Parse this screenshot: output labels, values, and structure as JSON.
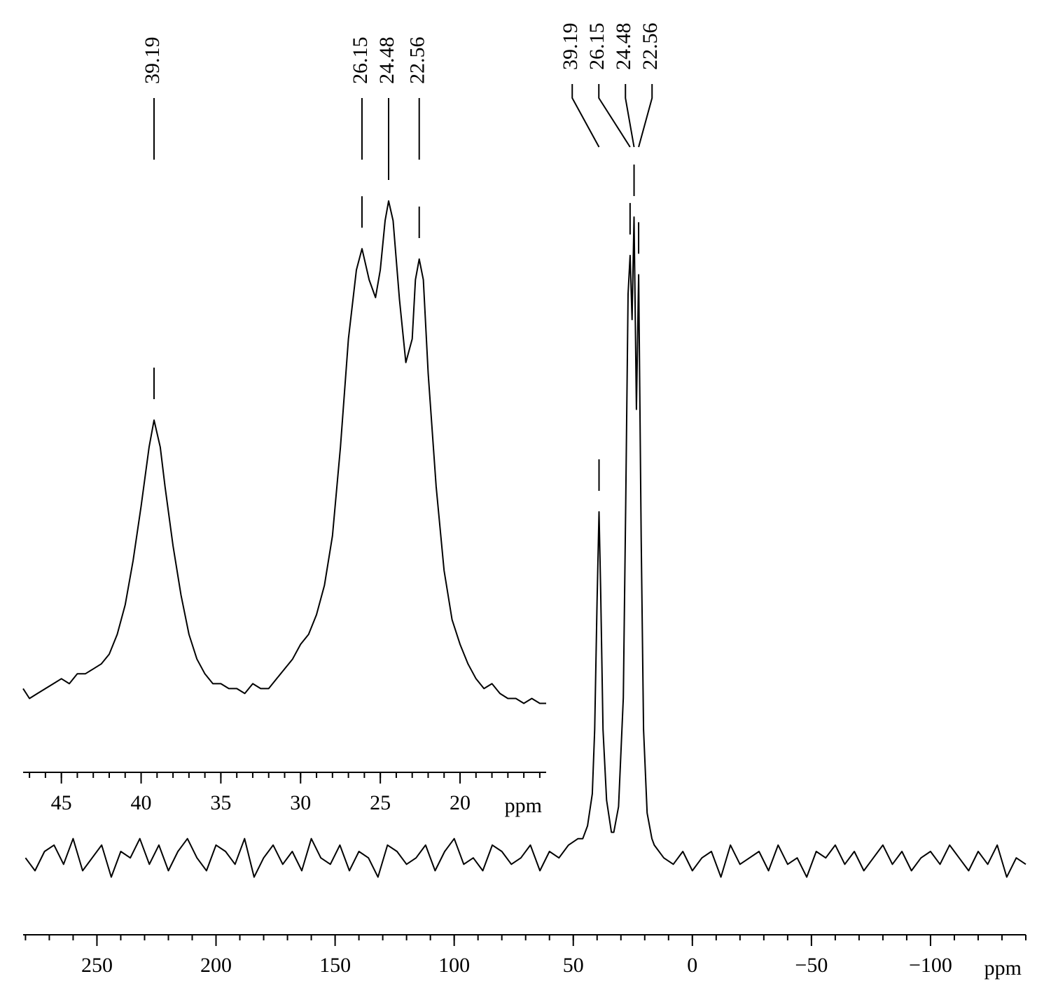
{
  "chart_data": [
    {
      "type": "line",
      "color": "#000000",
      "xlabel": "ppm",
      "xlim": [
        281,
        -140
      ],
      "ylim": [
        -12,
        100
      ],
      "xticks": [
        250,
        200,
        150,
        100,
        50,
        0,
        {
          "value": -50,
          "label": "−50"
        },
        {
          "value": -100,
          "label": "−100"
        }
      ],
      "minor_tick_step": 10,
      "peaks": [
        39.19,
        26.15,
        24.48,
        22.56
      ],
      "x": [
        280,
        276,
        272,
        268,
        264,
        260,
        256,
        252,
        248,
        244,
        240,
        236,
        232,
        228,
        224,
        220,
        216,
        212,
        208,
        204,
        200,
        196,
        192,
        188,
        184,
        180,
        176,
        172,
        168,
        164,
        160,
        156,
        152,
        148,
        144,
        140,
        136,
        132,
        128,
        124,
        120,
        116,
        112,
        108,
        104,
        100,
        96,
        92,
        88,
        84,
        80,
        76,
        72,
        68,
        64,
        60,
        56,
        52,
        48,
        46,
        44,
        42,
        41,
        40,
        39.19,
        38.5,
        37.5,
        36,
        34,
        33,
        31,
        29,
        28,
        27,
        26.15,
        25.3,
        24.48,
        23.5,
        22.56,
        21.5,
        20.5,
        19,
        17,
        16,
        12,
        8,
        4,
        0,
        -4,
        -8,
        -12,
        -16,
        -20,
        -24,
        -28,
        -32,
        -36,
        -40,
        -44,
        -48,
        -52,
        -56,
        -60,
        -64,
        -68,
        -72,
        -76,
        -80,
        -84,
        -88,
        -92,
        -96,
        -100,
        -104,
        -108,
        -112,
        -116,
        -120,
        -124,
        -128,
        -132,
        -136,
        -140
      ],
      "values": [
        0,
        -2,
        1,
        2,
        -1,
        3,
        -2,
        0,
        2,
        -3,
        1,
        0,
        3,
        -1,
        2,
        -2,
        1,
        3,
        0,
        -2,
        2,
        1,
        -1,
        3,
        -3,
        0,
        2,
        -1,
        1,
        -2,
        3,
        0,
        -1,
        2,
        -2,
        1,
        0,
        -3,
        2,
        1,
        -1,
        0,
        2,
        -2,
        1,
        3,
        -1,
        0,
        -2,
        2,
        1,
        -1,
        0,
        2,
        -2,
        1,
        0,
        2,
        3,
        3,
        5,
        10,
        20,
        40,
        54,
        42,
        20,
        9,
        4,
        4,
        8,
        25,
        55,
        88,
        94,
        84,
        100,
        70,
        91,
        50,
        20,
        7,
        3,
        2,
        0,
        -1,
        1,
        -2,
        0,
        1,
        -3,
        2,
        -1,
        0,
        1,
        -2,
        2,
        -1,
        0,
        -3,
        1,
        0,
        2,
        -1,
        1,
        -2,
        0,
        2,
        -1,
        1,
        -2,
        0,
        1,
        -1,
        2,
        0,
        -2,
        1,
        -1,
        2,
        -3,
        0,
        -1
      ]
    },
    {
      "type": "line",
      "color": "#000000",
      "xlabel": "ppm",
      "xlim": [
        47.4,
        14.6
      ],
      "ylim": [
        -16,
        100
      ],
      "xticks": [
        45,
        40,
        35,
        30,
        25,
        20
      ],
      "minor_tick_step": 1,
      "peaks": [
        39.19,
        26.15,
        24.48,
        22.56
      ],
      "x": [
        47.4,
        47,
        46.5,
        46,
        45.5,
        45,
        44.5,
        44,
        43.5,
        43,
        42.5,
        42,
        41.5,
        41,
        40.5,
        40,
        39.5,
        39.19,
        38.8,
        38.5,
        38,
        37.5,
        37,
        36.5,
        36,
        35.5,
        35,
        34.5,
        34,
        33.5,
        33,
        32.5,
        32,
        31.5,
        31,
        30.5,
        30,
        29.5,
        29,
        28.5,
        28,
        27.5,
        27,
        26.5,
        26.15,
        25.7,
        25.3,
        25,
        24.7,
        24.48,
        24.2,
        23.8,
        23.4,
        23,
        22.8,
        22.56,
        22.3,
        22,
        21.5,
        21,
        20.5,
        20,
        19.5,
        19,
        18.5,
        18,
        17.5,
        17,
        16.5,
        16,
        15.5,
        15,
        14.6
      ],
      "values": [
        1,
        -1,
        0,
        1,
        2,
        3,
        2,
        4,
        4,
        5,
        6,
        8,
        12,
        18,
        27,
        38,
        50,
        55.5,
        50,
        42,
        30,
        20,
        12,
        7,
        4,
        2,
        2,
        1,
        1,
        0,
        2,
        1,
        1,
        3,
        5,
        7,
        10,
        12,
        16,
        22,
        32,
        50,
        72,
        86,
        90.3,
        84,
        80.4,
        86,
        96,
        100,
        96,
        80,
        67.2,
        72,
        84,
        88.2,
        84,
        65,
        42,
        25,
        15,
        10,
        6,
        3,
        1,
        2,
        0,
        -1,
        -1,
        -2,
        -1,
        -2,
        -2
      ]
    }
  ]
}
